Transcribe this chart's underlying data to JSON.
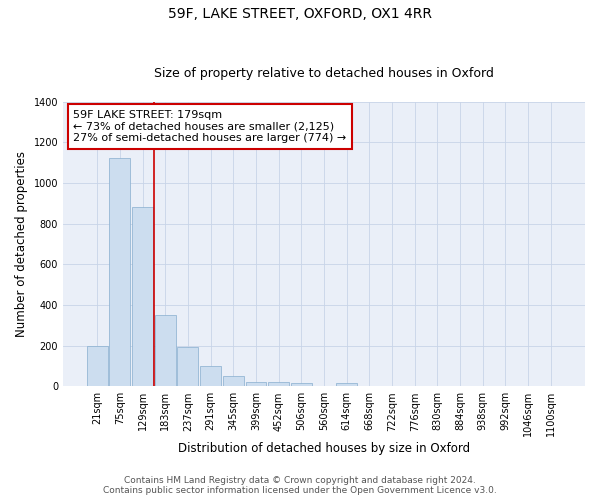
{
  "title": "59F, LAKE STREET, OXFORD, OX1 4RR",
  "subtitle": "Size of property relative to detached houses in Oxford",
  "xlabel": "Distribution of detached houses by size in Oxford",
  "ylabel": "Number of detached properties",
  "bar_labels": [
    "21sqm",
    "75sqm",
    "129sqm",
    "183sqm",
    "237sqm",
    "291sqm",
    "345sqm",
    "399sqm",
    "452sqm",
    "506sqm",
    "560sqm",
    "614sqm",
    "668sqm",
    "722sqm",
    "776sqm",
    "830sqm",
    "884sqm",
    "938sqm",
    "992sqm",
    "1046sqm",
    "1100sqm"
  ],
  "bar_heights": [
    196,
    1120,
    880,
    350,
    192,
    100,
    52,
    22,
    20,
    18,
    0,
    14,
    0,
    0,
    0,
    0,
    0,
    0,
    0,
    0,
    0
  ],
  "bar_color": "#ccddef",
  "bar_edge_color": "#88aece",
  "vline_pos": 2.5,
  "vline_color": "#cc0000",
  "annotation_lines": [
    "59F LAKE STREET: 179sqm",
    "← 73% of detached houses are smaller (2,125)",
    "27% of semi-detached houses are larger (774) →"
  ],
  "annotation_box_color": "#cc0000",
  "ylim": [
    0,
    1400
  ],
  "yticks": [
    0,
    200,
    400,
    600,
    800,
    1000,
    1200,
    1400
  ],
  "grid_color": "#c8d4e8",
  "bg_color": "#eaeff8",
  "footer_line1": "Contains HM Land Registry data © Crown copyright and database right 2024.",
  "footer_line2": "Contains public sector information licensed under the Open Government Licence v3.0.",
  "title_fontsize": 10,
  "subtitle_fontsize": 9,
  "axis_label_fontsize": 8.5,
  "tick_fontsize": 7,
  "annotation_fontsize": 8,
  "footer_fontsize": 6.5
}
